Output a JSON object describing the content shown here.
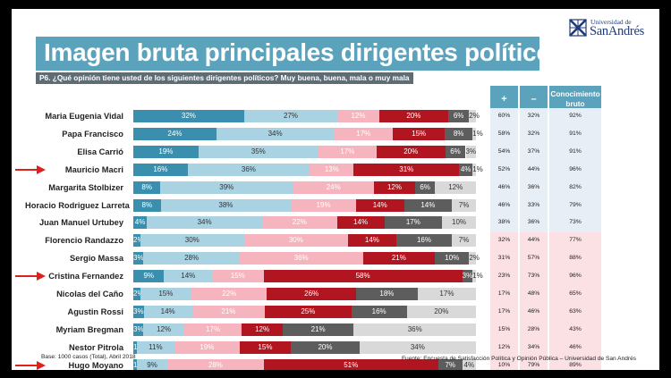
{
  "title": "Imagen bruta principales dirigentes políticos",
  "question": "P6. ¿Qué opinión tiene usted de los siguientes dirigentes políticos? Muy buena, buena, mala o muy mala",
  "logo": {
    "small_text": "Universidad de",
    "big_text": "SanAndrés",
    "icon": "university-crest-icon"
  },
  "headers": {
    "plus": "+",
    "minus": "–",
    "knowledge_line1": "Conocimiento",
    "knowledge_line2": "bruto"
  },
  "footer_left": "Base: 1000 casos (Total), Abril 2018",
  "footer_right": "Fuente: Encuesta de Satisfacción Política y Opinión Pública – Universidad de San Andrés",
  "colors": {
    "muy_buena": "#3b8fae",
    "buena": "#a9d3e2",
    "mala": "#f6b5be",
    "muy_mala": "#b01520",
    "ns_nc": "#5d5d5d",
    "no_conoce": "#d9d9d9",
    "header": "#5ba2bd",
    "positive_bg": "#e8eef6",
    "negative_bg": "#fbe1e4",
    "arrow": "#e0201d"
  },
  "chart_data": {
    "type": "bar",
    "stacked": true,
    "orientation": "horizontal",
    "xlim": [
      0,
      100
    ],
    "categories": [
      "Maria Eugenia Vidal",
      "Papa Francisco",
      "Elisa Carrió",
      "Mauricio Macri",
      "Margarita Stolbizer",
      "Horacio Rodriguez Larreta",
      "Juan Manuel Urtubey",
      "Florencio Randazzo",
      "Sergio Massa",
      "Cristina Fernandez",
      "Nicolas del Caño",
      "Agustin Rossi",
      "Myriam Bregman",
      "Nestor Pitrola",
      "Hugo Moyano"
    ],
    "highlighted": [
      "Mauricio Macri",
      "Cristina Fernandez",
      "Hugo Moyano"
    ],
    "series": [
      {
        "key": "muy_buena",
        "values": [
          32,
          24,
          19,
          16,
          8,
          8,
          4,
          2,
          3,
          9,
          2,
          3,
          3,
          1,
          1
        ],
        "labels": [
          "32%",
          "24%",
          "19%",
          "16%",
          "8%",
          "8%",
          "4%",
          "2%",
          "3%",
          "9%",
          "2%",
          "3%",
          "3%",
          "1%",
          "1%"
        ]
      },
      {
        "key": "buena",
        "values": [
          27,
          34,
          35,
          36,
          39,
          38,
          34,
          30,
          28,
          14,
          15,
          14,
          12,
          11,
          9
        ],
        "labels": [
          "27%",
          "34%",
          "35%",
          "36%",
          "39%",
          "38%",
          "34%",
          "30%",
          "28%",
          "14%",
          "15%",
          "14%",
          "12%",
          "11%",
          "9%"
        ]
      },
      {
        "key": "mala",
        "values": [
          12,
          17,
          17,
          13,
          24,
          19,
          22,
          30,
          36,
          15,
          22,
          21,
          17,
          19,
          28
        ],
        "labels": [
          "12%",
          "17%",
          "17%",
          "13%",
          "24%",
          "19%",
          "22%",
          "30%",
          "36%",
          "15%",
          "22%",
          "21%",
          "17%",
          "19%",
          "28%"
        ]
      },
      {
        "key": "muy_mala",
        "values": [
          20,
          15,
          20,
          31,
          12,
          14,
          14,
          14,
          21,
          58,
          26,
          25,
          12,
          15,
          51
        ],
        "labels": [
          "20%",
          "15%",
          "20%",
          "31%",
          "12%",
          "14%",
          "14%",
          "14%",
          "21%",
          "58%",
          "26%",
          "25%",
          "12%",
          "15%",
          "51%"
        ]
      },
      {
        "key": "ns_nc",
        "values": [
          6,
          8,
          6,
          4,
          6,
          14,
          17,
          16,
          10,
          3,
          18,
          16,
          21,
          20,
          7
        ],
        "labels": [
          "6%",
          "8%",
          "6%",
          "4%",
          "6%",
          "14%",
          "17%",
          "16%",
          "10%",
          "3%",
          "18%",
          "16%",
          "21%",
          "20%",
          "7%"
        ]
      },
      {
        "key": "no_conoce",
        "values": [
          2,
          1,
          3,
          1,
          12,
          7,
          10,
          7,
          2,
          1,
          17,
          20,
          36,
          34,
          4
        ],
        "labels": [
          "2%",
          "1%",
          "3%",
          "1%",
          "12%",
          "7%",
          "10%",
          "7%",
          "2%",
          "1%",
          "17%",
          "20%",
          "36%",
          "34%",
          "4%"
        ]
      }
    ],
    "table": {
      "plus": [
        "60%",
        "58%",
        "54%",
        "52%",
        "46%",
        "46%",
        "38%",
        "32%",
        "31%",
        "23%",
        "17%",
        "17%",
        "15%",
        "12%",
        "10%"
      ],
      "minus": [
        "32%",
        "32%",
        "37%",
        "44%",
        "36%",
        "33%",
        "36%",
        "44%",
        "57%",
        "73%",
        "48%",
        "46%",
        "28%",
        "34%",
        "79%"
      ],
      "knowledge": [
        "92%",
        "91%",
        "91%",
        "96%",
        "82%",
        "79%",
        "73%",
        "77%",
        "88%",
        "96%",
        "65%",
        "63%",
        "43%",
        "46%",
        "89%"
      ]
    }
  }
}
